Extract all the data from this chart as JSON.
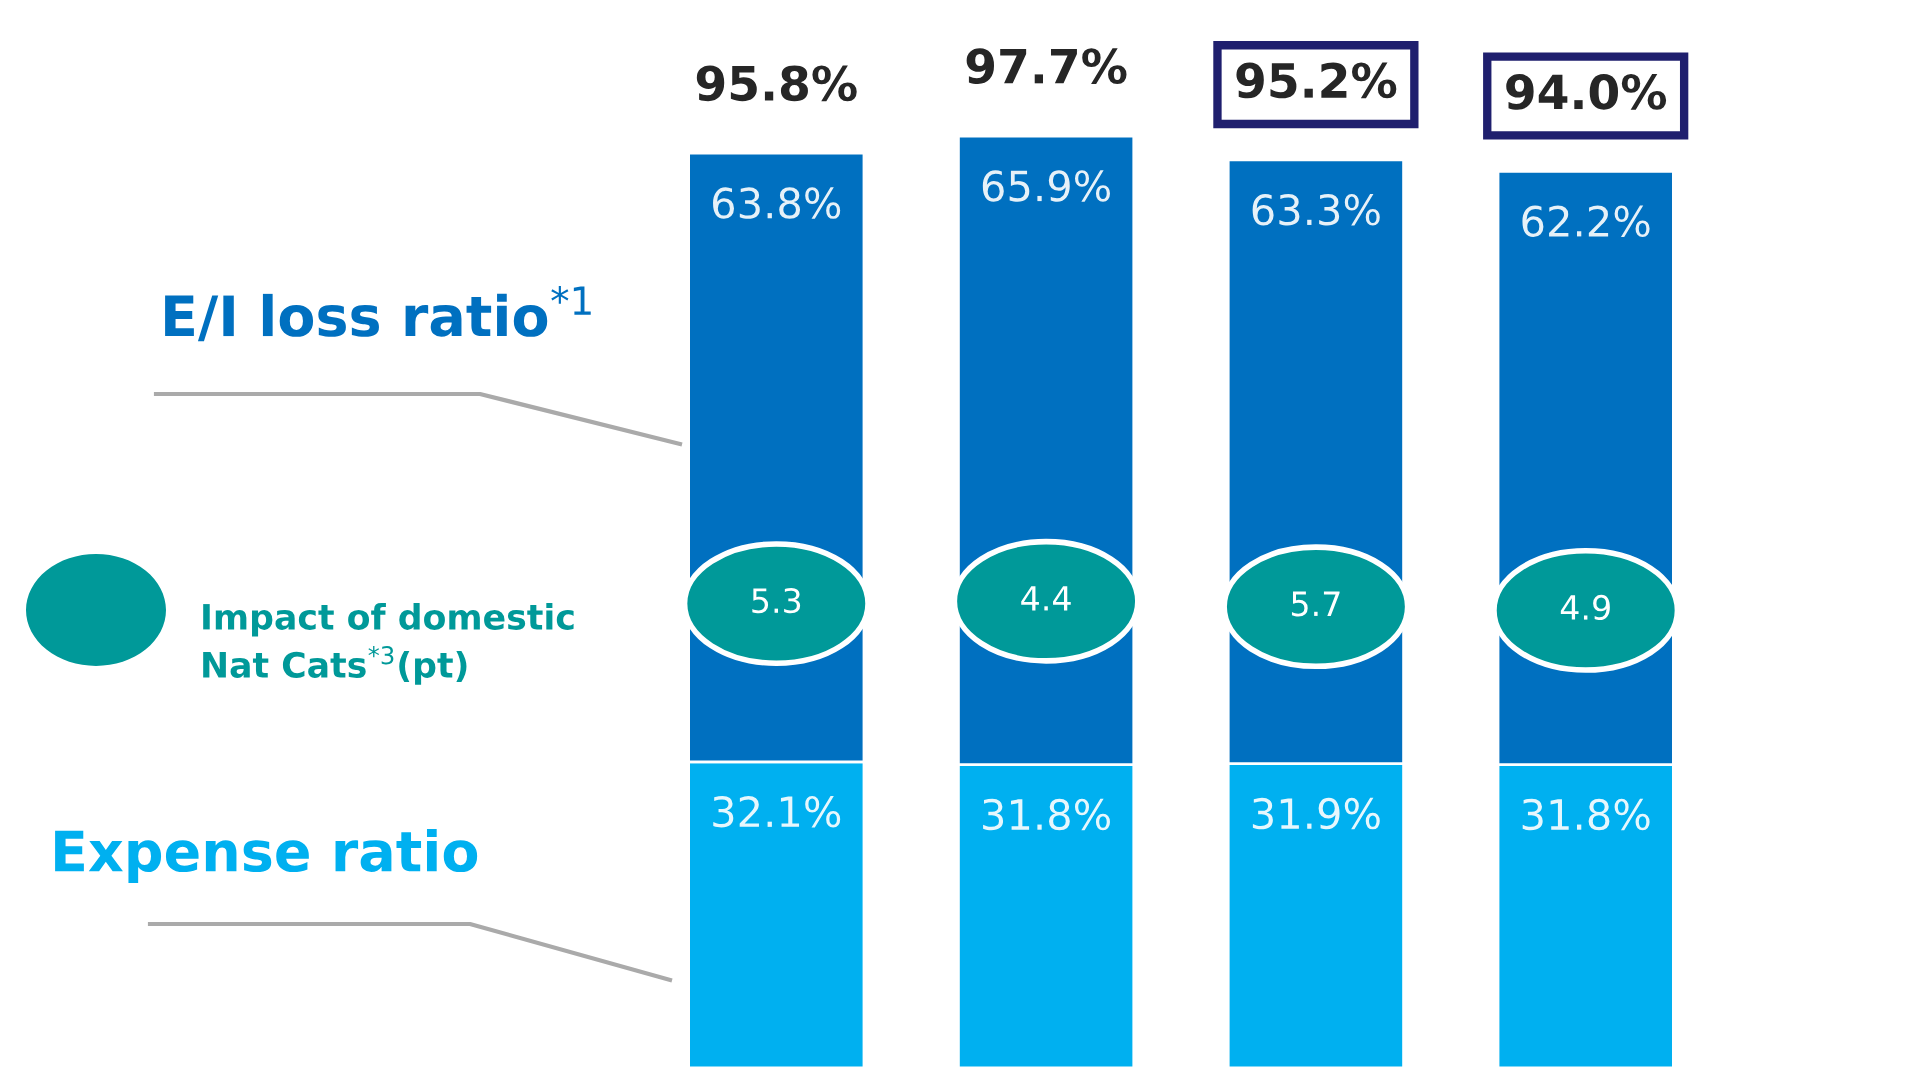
{
  "chart_data": {
    "type": "bar",
    "stacked": true,
    "categories": [
      null,
      null,
      null,
      null
    ],
    "series": [
      {
        "name": "Expense ratio",
        "color": "#00b0f0",
        "values": [
          32.1,
          31.8,
          31.9,
          31.8
        ],
        "value_labels": [
          "32.1%",
          "31.8%",
          "31.9%",
          "31.8%"
        ]
      },
      {
        "name": "E/I loss ratio$^{*1}$",
        "color": "#0070c0",
        "values": [
          63.8,
          65.9,
          63.3,
          62.2
        ],
        "value_labels": [
          "63.8%",
          "65.9%",
          "63.3%",
          "62.2%"
        ]
      }
    ],
    "totals": [
      "95.8%",
      "97.7%",
      "95.2%",
      "94.0%"
    ],
    "annotations": [
      "Impact of domestic\nNat Cats$^{*3}$(pt)",
      "5.3",
      "4.4",
      "5.7",
      "4.9"
    ],
    "legend": false
  }
}
